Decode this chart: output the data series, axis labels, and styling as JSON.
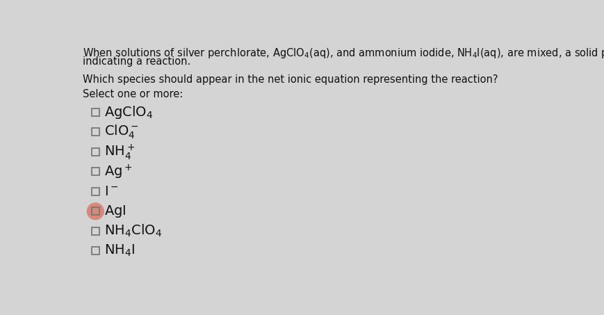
{
  "background_color": "#d4d4d4",
  "title_line1": "When solutions of silver perchlorate,  $\\mathregular{AgClO_4(aq)}$, and ammonium iodide,  $\\mathregular{NH_4I(aq)}$, are mixed, a solid precipitate forms,",
  "title_line2": "indicating a reaction.",
  "question": "Which species should appear in the net ionic equation representing the reaction?",
  "select_text": "Select one or more:",
  "options": [
    {
      "mathtext": "$\\mathregular{AgClO_4}$",
      "checked": false,
      "highlighted": false
    },
    {
      "mathtext": "$\\mathregular{ClO_4^-}$",
      "checked": false,
      "highlighted": false
    },
    {
      "mathtext": "$\\mathregular{NH_4^+}$",
      "checked": false,
      "highlighted": false
    },
    {
      "mathtext": "$\\mathregular{Ag^+}$",
      "checked": false,
      "highlighted": false
    },
    {
      "mathtext": "$\\mathregular{I^-}$",
      "checked": false,
      "highlighted": false
    },
    {
      "mathtext": "$\\mathregular{AgI}$",
      "checked": false,
      "highlighted": true
    },
    {
      "mathtext": "$\\mathregular{NH_4ClO_4}$",
      "checked": false,
      "highlighted": false
    },
    {
      "mathtext": "$\\mathregular{NH_4I}$",
      "checked": false,
      "highlighted": false
    }
  ],
  "checkbox_size": 14,
  "checkbox_color": "#777777",
  "highlight_color": "#d9897a",
  "text_color": "#111111",
  "font_size_body": 10.5,
  "font_size_options": 14,
  "font_size_question": 10.5
}
